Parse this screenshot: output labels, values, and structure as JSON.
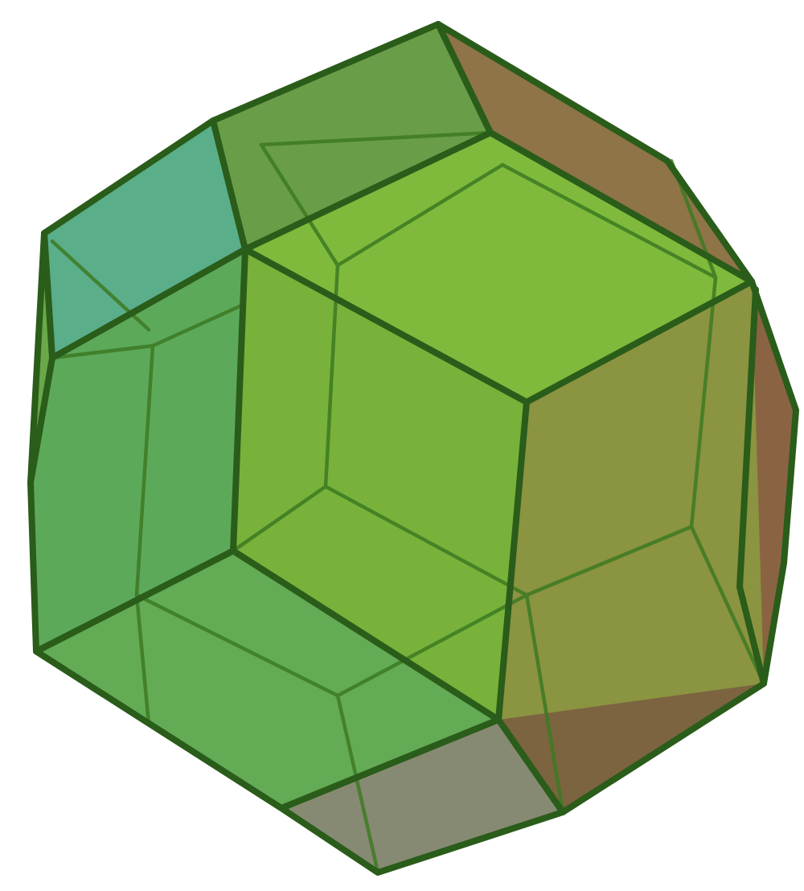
{
  "image": {
    "subject": "",
    "colors": {
      "background": "#ffffff",
      "face_green_front": "#7fb83a",
      "face_green_left": "#58a66a",
      "face_teal": "#5db384",
      "face_olive": "#8a8f3c",
      "face_brown": "#8d6b44",
      "face_gray_bottom": "#8a8a77",
      "edge_front": "#2b5e1b",
      "edge_back": "#3f7a22"
    }
  }
}
